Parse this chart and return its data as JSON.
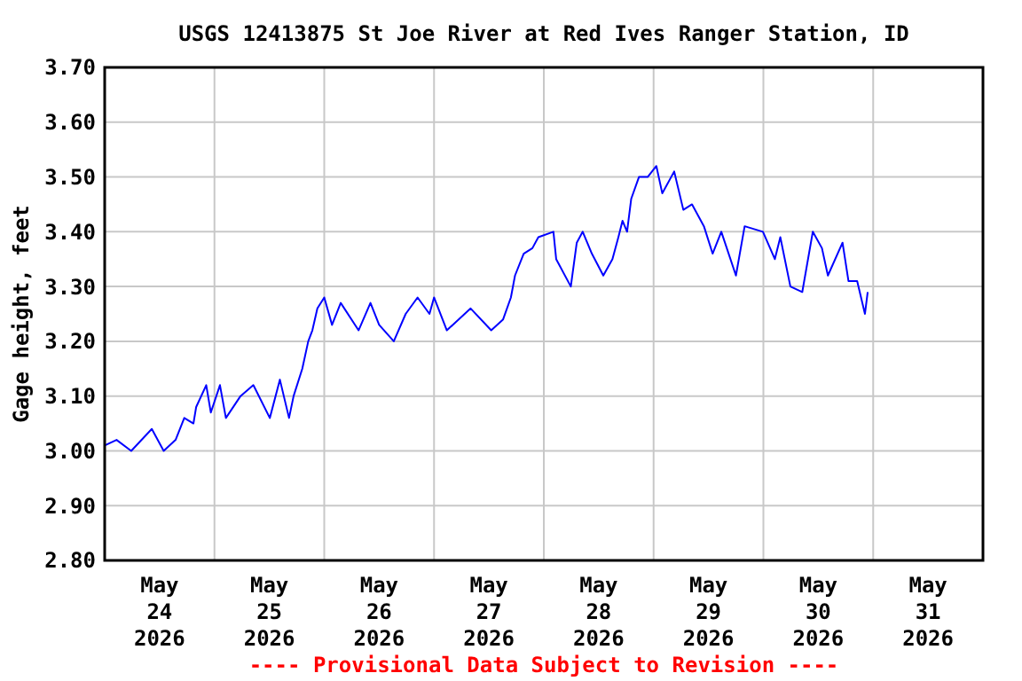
{
  "chart_data": {
    "type": "line",
    "title": "USGS 12413875 St Joe River at Red Ives Ranger Station, ID",
    "ylabel": "Gage height, feet",
    "annotations": [
      "---- Provisional Data Subject to Revision ----"
    ],
    "x": [
      "2026-05-24T00:00",
      "2026-05-24T02:36",
      "2026-05-24T05:48",
      "2026-05-24T10:18",
      "2026-05-24T12:54",
      "2026-05-24T15:30",
      "2026-05-24T17:24",
      "2026-05-24T19:24",
      "2026-05-24T20:00",
      "2026-05-24T22:12",
      "2026-05-24T23:12",
      "2026-05-25T01:12",
      "2026-05-25T02:30",
      "2026-05-25T05:42",
      "2026-05-25T08:30",
      "2026-05-25T12:06",
      "2026-05-25T14:18",
      "2026-05-25T16:18",
      "2026-05-25T17:18",
      "2026-05-25T19:12",
      "2026-05-25T20:30",
      "2026-05-25T21:24",
      "2026-05-25T22:30",
      "2026-05-26T00:00",
      "2026-05-26T01:42",
      "2026-05-26T03:36",
      "2026-05-26T07:30",
      "2026-05-26T10:06",
      "2026-05-26T12:00",
      "2026-05-26T15:12",
      "2026-05-26T17:48",
      "2026-05-26T20:24",
      "2026-05-26T23:00",
      "2026-05-27T00:00",
      "2026-05-27T02:48",
      "2026-05-27T08:00",
      "2026-05-27T12:30",
      "2026-05-27T15:06",
      "2026-05-27T16:48",
      "2026-05-27T17:42",
      "2026-05-27T19:36",
      "2026-05-27T21:30",
      "2026-05-27T22:48",
      "2026-05-28T02:06",
      "2026-05-28T02:42",
      "2026-05-28T05:54",
      "2026-05-28T07:12",
      "2026-05-28T08:30",
      "2026-05-28T10:30",
      "2026-05-28T13:00",
      "2026-05-28T15:00",
      "2026-05-28T16:18",
      "2026-05-28T17:12",
      "2026-05-28T18:12",
      "2026-05-28T19:06",
      "2026-05-28T20:48",
      "2026-05-28T22:42",
      "2026-05-29T00:36",
      "2026-05-29T01:54",
      "2026-05-29T04:30",
      "2026-05-29T06:30",
      "2026-05-29T08:24",
      "2026-05-29T11:00",
      "2026-05-29T12:54",
      "2026-05-29T14:48",
      "2026-05-29T18:00",
      "2026-05-29T19:54",
      "2026-05-29T23:54",
      "2026-05-30T02:30",
      "2026-05-30T03:42",
      "2026-05-30T05:54",
      "2026-05-30T08:30",
      "2026-05-30T10:48",
      "2026-05-30T12:48",
      "2026-05-30T14:06",
      "2026-05-30T17:18",
      "2026-05-30T18:36",
      "2026-05-30T20:30",
      "2026-05-30T22:12",
      "2026-05-30T22:48"
    ],
    "series": [
      {
        "color": "#0000ff",
        "values": [
          3.01,
          3.02,
          3.0,
          3.04,
          3.0,
          3.02,
          3.06,
          3.05,
          3.08,
          3.12,
          3.07,
          3.12,
          3.06,
          3.1,
          3.12,
          3.06,
          3.13,
          3.06,
          3.1,
          3.15,
          3.2,
          3.22,
          3.26,
          3.28,
          3.23,
          3.27,
          3.22,
          3.27,
          3.23,
          3.2,
          3.25,
          3.28,
          3.25,
          3.28,
          3.22,
          3.26,
          3.22,
          3.24,
          3.28,
          3.32,
          3.36,
          3.37,
          3.39,
          3.4,
          3.35,
          3.3,
          3.38,
          3.4,
          3.36,
          3.32,
          3.35,
          3.39,
          3.42,
          3.4,
          3.46,
          3.5,
          3.5,
          3.52,
          3.47,
          3.51,
          3.44,
          3.45,
          3.41,
          3.36,
          3.4,
          3.32,
          3.41,
          3.4,
          3.35,
          3.39,
          3.3,
          3.29,
          3.4,
          3.37,
          3.32,
          3.38,
          3.31,
          3.31,
          3.25,
          3.29
        ]
      }
    ],
    "xlim": [
      "2026-05-24T00:00",
      "2026-06-01T00:00"
    ],
    "xticks": [
      {
        "value": "2026-05-24T12:00",
        "label": "May\n24\n2026"
      },
      {
        "value": "2026-05-25T12:00",
        "label": "May\n25\n2026"
      },
      {
        "value": "2026-05-26T12:00",
        "label": "May\n26\n2026"
      },
      {
        "value": "2026-05-27T12:00",
        "label": "May\n27\n2026"
      },
      {
        "value": "2026-05-28T12:00",
        "label": "May\n28\n2026"
      },
      {
        "value": "2026-05-29T12:00",
        "label": "May\n29\n2026"
      },
      {
        "value": "2026-05-30T12:00",
        "label": "May\n30\n2026"
      },
      {
        "value": "2026-05-31T12:00",
        "label": "May\n31\n2026"
      },
      {
        "value": "2026-05-25T00:00",
        "label": null
      },
      {
        "value": "2026-05-26T00:00",
        "label": null
      },
      {
        "value": "2026-05-27T00:00",
        "label": null
      },
      {
        "value": "2026-05-28T00:00",
        "label": null
      },
      {
        "value": "2026-05-29T00:00",
        "label": null
      },
      {
        "value": "2026-05-30T00:00",
        "label": null
      },
      {
        "value": "2026-05-31T00:00",
        "label": null
      }
    ],
    "ylim": [
      2.8,
      3.7
    ],
    "yticks": [
      {
        "value": 2.8,
        "label": "2.80"
      },
      {
        "value": 2.9,
        "label": "2.90"
      },
      {
        "value": 3.0,
        "label": "3.00"
      },
      {
        "value": 3.1,
        "label": "3.10"
      },
      {
        "value": 3.2,
        "label": "3.20"
      },
      {
        "value": 3.3,
        "label": "3.30"
      },
      {
        "value": 3.4,
        "label": "3.40"
      },
      {
        "value": 3.5,
        "label": "3.50"
      },
      {
        "value": 3.6,
        "label": "3.60"
      },
      {
        "value": 3.7,
        "label": "3.70"
      }
    ],
    "grid": true,
    "line_style": "solid"
  }
}
